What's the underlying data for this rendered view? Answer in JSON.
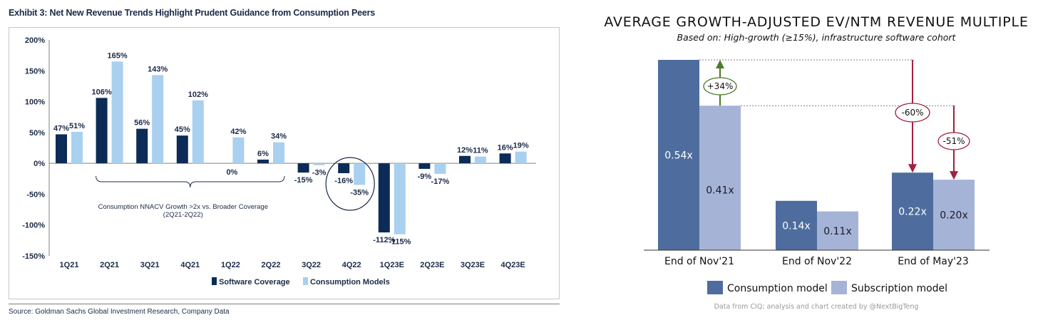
{
  "left_chart": {
    "exhibit_title": "Exhibit 3: Net New Revenue Trends Highlight Prudent Guidance from Consumption Peers",
    "source": "Source: Goldman Sachs Global Investment Research, Company Data",
    "annotation_line1": "Consumption NNACV Growth >2x vs. Broader Coverage",
    "annotation_line2": "(2Q21-2Q22)",
    "colors": {
      "software": "#0c2b57",
      "consumption": "#a9d0ef"
    }
  },
  "right_chart": {
    "title": "AVERAGE GROWTH-ADJUSTED EV/NTM REVENUE MULTIPLE",
    "subtitle": "Based on: High-growth (≥15%), infrastructure software cohort",
    "credit": "Data from CIQ; analysis and chart created by @NextBigTeng",
    "annotations": [
      "+34%",
      "-60%",
      "-51%"
    ],
    "colors": {
      "consumption": "#4e6d9e",
      "subscription": "#a5b4d6",
      "up_arrow": "#4b7a2a",
      "down_arrow": "#a3203f"
    }
  },
  "chart_data": [
    {
      "type": "bar",
      "title": "Exhibit 3: Net New Revenue Trends Highlight Prudent Guidance from Consumption Peers",
      "categories": [
        "1Q21",
        "2Q21",
        "3Q21",
        "4Q21",
        "1Q22",
        "2Q22",
        "3Q22",
        "4Q22",
        "1Q23E",
        "2Q23E",
        "3Q23E",
        "4Q23E"
      ],
      "series": [
        {
          "name": "Software Coverage",
          "values": [
            47,
            106,
            56,
            45,
            0,
            6,
            -15,
            -16,
            -112,
            -9,
            12,
            16
          ],
          "labels": [
            "47%",
            "106%",
            "56%",
            "45%",
            "0%",
            "6%",
            "-15%",
            "-16%",
            "-112%",
            "-9%",
            "12%",
            "16%"
          ]
        },
        {
          "name": "Consumption Models",
          "values": [
            51,
            165,
            143,
            102,
            42,
            34,
            -3,
            -35,
            -115,
            -17,
            11,
            19
          ],
          "labels": [
            "51%",
            "165%",
            "143%",
            "102%",
            "42%",
            "34%",
            "-3%",
            "-35%",
            "-115%",
            "-17%",
            "11%",
            "19%"
          ]
        }
      ],
      "ylim": [
        -150,
        200
      ],
      "yticks": [
        200,
        150,
        100,
        50,
        0,
        -50,
        -100,
        -150
      ],
      "ytick_labels": [
        "200%",
        "150%",
        "100%",
        "50%",
        "0%",
        "-50%",
        "-100%",
        "-150%"
      ],
      "xlabel": "",
      "ylabel": "",
      "legend": "bottom"
    },
    {
      "type": "bar",
      "title": "AVERAGE GROWTH-ADJUSTED EV/NTM REVENUE MULTIPLE",
      "subtitle": "Based on: High-growth (≥15%), infrastructure software cohort",
      "categories": [
        "End of Nov'21",
        "End of Nov'22",
        "End of May'23"
      ],
      "series": [
        {
          "name": "Consumption model",
          "values": [
            0.54,
            0.14,
            0.22
          ],
          "labels": [
            "0.54x",
            "0.14x",
            "0.22x"
          ]
        },
        {
          "name": "Subscription model",
          "values": [
            0.41,
            0.11,
            0.2
          ],
          "labels": [
            "0.41x",
            "0.11x",
            "0.20x"
          ]
        }
      ],
      "ylim": [
        0,
        0.54
      ],
      "legend": "bottom"
    }
  ]
}
